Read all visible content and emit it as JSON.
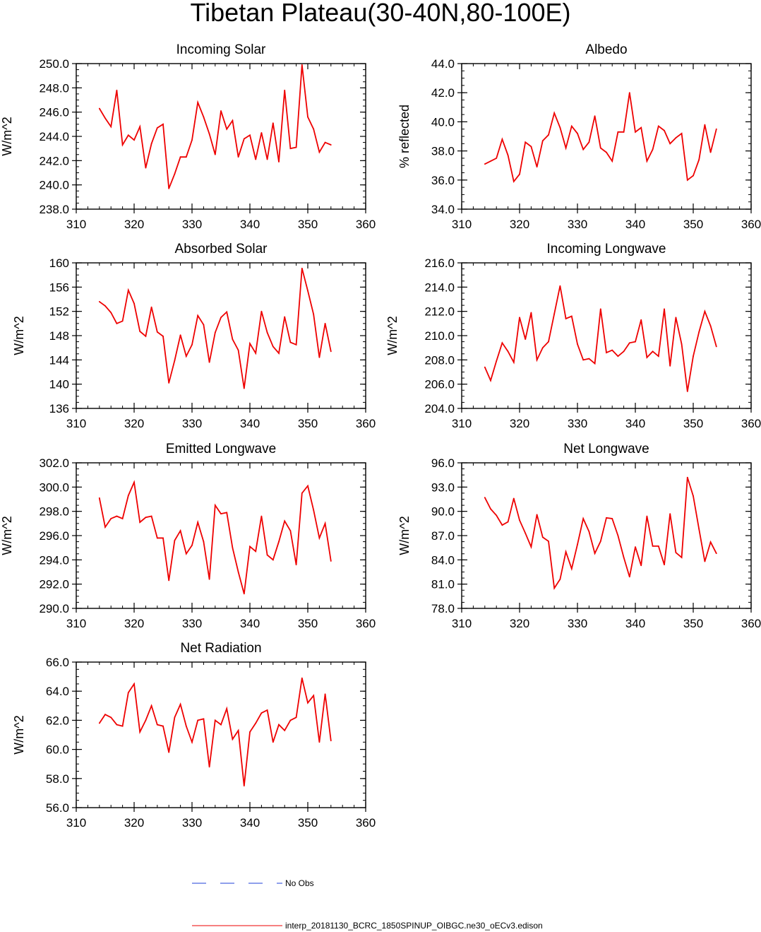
{
  "page_title": "Tibetan Plateau(30-40N,80-100E)",
  "colors": {
    "model_line": "#ee0000",
    "obs_line": "#1f3fd9",
    "axis": "#000000"
  },
  "legend": {
    "obs_label": "No Obs",
    "model_label": "interp_20181130_BCRC_1850SPINUP_OIBGC.ne30_oECv3.edison"
  },
  "chart_data": [
    {
      "type": "line",
      "title": "Incoming Solar",
      "xlabel": "",
      "ylabel": "W/m^2",
      "xlim": [
        310,
        360
      ],
      "ylim": [
        238,
        250
      ],
      "xticks": [
        310,
        320,
        330,
        340,
        350,
        360
      ],
      "xtick_labels": [
        "310",
        "320",
        "330",
        "340",
        "350",
        "360"
      ],
      "yticks": [
        238,
        240,
        242,
        244,
        246,
        248,
        250
      ],
      "ytick_labels": [
        "238.0",
        "240.0",
        "242.0",
        "244.0",
        "246.0",
        "248.0",
        "250.0"
      ],
      "x": [
        314,
        315,
        316,
        317,
        318,
        319,
        320,
        321,
        322,
        323,
        324,
        325,
        326,
        327,
        328,
        329,
        330,
        331,
        332,
        333,
        334,
        335,
        336,
        337,
        338,
        339,
        340,
        341,
        342,
        343,
        344,
        345,
        346,
        347,
        348,
        349,
        350,
        351,
        352,
        353,
        354
      ],
      "series": [
        {
          "values": [
            246.3,
            245.5,
            244.8,
            247.8,
            243.3,
            244.1,
            243.7,
            244.8,
            241.4,
            243.4,
            244.7,
            245.0,
            239.7,
            240.9,
            242.3,
            242.3,
            243.7,
            246.8,
            245.6,
            244.2,
            242.5,
            246.1,
            244.6,
            245.3,
            242.3,
            243.8,
            244.1,
            242.1,
            244.3,
            242.1,
            245.1,
            241.9,
            247.8,
            243.0,
            243.1,
            249.9,
            245.6,
            244.6,
            242.7,
            243.5,
            243.3
          ]
        }
      ]
    },
    {
      "type": "line",
      "title": "Albedo",
      "xlabel": "",
      "ylabel": "% reflected",
      "xlim": [
        310,
        360
      ],
      "ylim": [
        34,
        44
      ],
      "xticks": [
        310,
        320,
        330,
        340,
        350,
        360
      ],
      "xtick_labels": [
        "310",
        "320",
        "330",
        "340",
        "350",
        "360"
      ],
      "yticks": [
        34,
        36,
        38,
        40,
        42,
        44
      ],
      "ytick_labels": [
        "34.0",
        "36.0",
        "38.0",
        "40.0",
        "42.0",
        "44.0"
      ],
      "x": [
        314,
        315,
        316,
        317,
        318,
        319,
        320,
        321,
        322,
        323,
        324,
        325,
        326,
        327,
        328,
        329,
        330,
        331,
        332,
        333,
        334,
        335,
        336,
        337,
        338,
        339,
        340,
        341,
        342,
        343,
        344,
        345,
        346,
        347,
        348,
        349,
        350,
        351,
        352,
        353,
        354
      ],
      "series": [
        {
          "values": [
            37.1,
            37.3,
            37.5,
            38.8,
            37.7,
            35.9,
            36.4,
            38.6,
            38.3,
            36.9,
            38.7,
            39.1,
            40.6,
            39.6,
            38.2,
            39.7,
            39.2,
            38.1,
            38.6,
            40.4,
            38.2,
            37.9,
            37.3,
            39.3,
            39.3,
            42.0,
            39.3,
            39.6,
            37.3,
            38.1,
            39.7,
            39.4,
            38.5,
            38.9,
            39.2,
            36.0,
            36.3,
            37.4,
            39.8,
            37.9,
            39.5
          ]
        }
      ]
    },
    {
      "type": "line",
      "title": "Absorbed Solar",
      "xlabel": "",
      "ylabel": "W/m^2",
      "xlim": [
        310,
        360
      ],
      "ylim": [
        136,
        160
      ],
      "xticks": [
        310,
        320,
        330,
        340,
        350,
        360
      ],
      "xtick_labels": [
        "310",
        "320",
        "330",
        "340",
        "350",
        "360"
      ],
      "yticks": [
        136,
        140,
        144,
        148,
        152,
        156,
        160
      ],
      "ytick_labels": [
        "136",
        "140",
        "144",
        "148",
        "152",
        "156",
        "160"
      ],
      "x": [
        314,
        315,
        316,
        317,
        318,
        319,
        320,
        321,
        322,
        323,
        324,
        325,
        326,
        327,
        328,
        329,
        330,
        331,
        332,
        333,
        334,
        335,
        336,
        337,
        338,
        339,
        340,
        341,
        342,
        343,
        344,
        345,
        346,
        347,
        348,
        349,
        350,
        351,
        352,
        353,
        354
      ],
      "series": [
        {
          "values": [
            153.6,
            152.9,
            151.8,
            150.0,
            150.4,
            155.5,
            153.3,
            148.7,
            147.9,
            152.7,
            148.6,
            147.9,
            140.2,
            143.9,
            148.1,
            144.6,
            146.5,
            151.3,
            149.8,
            143.6,
            148.5,
            151.0,
            151.9,
            147.4,
            145.6,
            139.3,
            146.7,
            145.1,
            152.0,
            148.5,
            146.2,
            145.1,
            151.1,
            146.9,
            146.5,
            159.1,
            155.4,
            151.5,
            144.4,
            150.0,
            145.4
          ]
        }
      ]
    },
    {
      "type": "line",
      "title": "Incoming Longwave",
      "xlabel": "",
      "ylabel": "W/m^2",
      "xlim": [
        310,
        360
      ],
      "ylim": [
        204,
        216
      ],
      "xticks": [
        310,
        320,
        330,
        340,
        350,
        360
      ],
      "xtick_labels": [
        "310",
        "320",
        "330",
        "340",
        "350",
        "360"
      ],
      "yticks": [
        204,
        206,
        208,
        210,
        212,
        214,
        216
      ],
      "ytick_labels": [
        "204.0",
        "206.0",
        "208.0",
        "210.0",
        "212.0",
        "214.0",
        "216.0"
      ],
      "x": [
        314,
        315,
        316,
        317,
        318,
        319,
        320,
        321,
        322,
        323,
        324,
        325,
        326,
        327,
        328,
        329,
        330,
        331,
        332,
        333,
        334,
        335,
        336,
        337,
        338,
        339,
        340,
        341,
        342,
        343,
        344,
        345,
        346,
        347,
        348,
        349,
        350,
        351,
        352,
        353,
        354
      ],
      "series": [
        {
          "values": [
            207.4,
            206.3,
            207.9,
            209.4,
            208.7,
            207.8,
            211.5,
            209.7,
            211.9,
            208.0,
            209.0,
            209.5,
            211.8,
            214.1,
            211.4,
            211.6,
            209.3,
            208.0,
            208.1,
            207.7,
            212.2,
            208.6,
            208.8,
            208.3,
            208.7,
            209.4,
            209.5,
            211.3,
            208.2,
            208.7,
            208.3,
            212.2,
            207.5,
            211.5,
            209.3,
            205.4,
            208.3,
            210.3,
            212.0,
            210.8,
            209.1
          ]
        }
      ]
    },
    {
      "type": "line",
      "title": "Emitted Longwave",
      "xlabel": "",
      "ylabel": "W/m^2",
      "xlim": [
        310,
        360
      ],
      "ylim": [
        290,
        302
      ],
      "xticks": [
        310,
        320,
        330,
        340,
        350,
        360
      ],
      "xtick_labels": [
        "310",
        "320",
        "330",
        "340",
        "350",
        "360"
      ],
      "yticks": [
        290,
        292,
        294,
        296,
        298,
        300,
        302
      ],
      "ytick_labels": [
        "290.0",
        "292.0",
        "294.0",
        "296.0",
        "298.0",
        "300.0",
        "302.0"
      ],
      "x": [
        314,
        315,
        316,
        317,
        318,
        319,
        320,
        321,
        322,
        323,
        324,
        325,
        326,
        327,
        328,
        329,
        330,
        331,
        332,
        333,
        334,
        335,
        336,
        337,
        338,
        339,
        340,
        341,
        342,
        343,
        344,
        345,
        346,
        347,
        348,
        349,
        350,
        351,
        352,
        353,
        354
      ],
      "series": [
        {
          "values": [
            299.1,
            296.7,
            297.4,
            297.6,
            297.4,
            299.3,
            300.4,
            297.1,
            297.5,
            297.6,
            295.8,
            295.8,
            292.3,
            295.6,
            296.4,
            294.5,
            295.2,
            297.1,
            295.5,
            292.4,
            298.5,
            297.8,
            297.9,
            295.0,
            293.0,
            291.2,
            295.1,
            294.7,
            297.6,
            294.4,
            294.0,
            295.5,
            297.2,
            296.4,
            293.6,
            299.5,
            300.1,
            298.1,
            295.8,
            297.0,
            293.9
          ]
        }
      ]
    },
    {
      "type": "line",
      "title": "Net Longwave",
      "xlabel": "",
      "ylabel": "W/m^2",
      "xlim": [
        310,
        360
      ],
      "ylim": [
        78,
        96
      ],
      "xticks": [
        310,
        320,
        330,
        340,
        350,
        360
      ],
      "xtick_labels": [
        "310",
        "320",
        "330",
        "340",
        "350",
        "360"
      ],
      "yticks": [
        78,
        81,
        84,
        87,
        90,
        93,
        96
      ],
      "ytick_labels": [
        "78.0",
        "81.0",
        "84.0",
        "87.0",
        "90.0",
        "93.0",
        "96.0"
      ],
      "x": [
        314,
        315,
        316,
        317,
        318,
        319,
        320,
        321,
        322,
        323,
        324,
        325,
        326,
        327,
        328,
        329,
        330,
        331,
        332,
        333,
        334,
        335,
        336,
        337,
        338,
        339,
        340,
        341,
        342,
        343,
        344,
        345,
        346,
        347,
        348,
        349,
        350,
        351,
        352,
        353,
        354
      ],
      "series": [
        {
          "values": [
            91.7,
            90.3,
            89.5,
            88.3,
            88.7,
            91.6,
            88.9,
            87.3,
            85.6,
            89.6,
            86.8,
            86.3,
            80.5,
            81.6,
            85.0,
            82.9,
            85.9,
            89.1,
            87.5,
            84.8,
            86.3,
            89.2,
            89.1,
            87.0,
            84.3,
            81.9,
            85.6,
            83.3,
            89.4,
            85.7,
            85.7,
            83.4,
            89.7,
            84.9,
            84.3,
            94.2,
            91.9,
            87.8,
            83.8,
            86.2,
            84.8
          ]
        }
      ]
    },
    {
      "type": "line",
      "title": "Net Radiation",
      "xlabel": "",
      "ylabel": "W/m^2",
      "xlim": [
        310,
        360
      ],
      "ylim": [
        56,
        66
      ],
      "xticks": [
        310,
        320,
        330,
        340,
        350,
        360
      ],
      "xtick_labels": [
        "310",
        "320",
        "330",
        "340",
        "350",
        "360"
      ],
      "yticks": [
        56,
        58,
        60,
        62,
        64,
        66
      ],
      "ytick_labels": [
        "56.0",
        "58.0",
        "60.0",
        "62.0",
        "64.0",
        "66.0"
      ],
      "x": [
        314,
        315,
        316,
        317,
        318,
        319,
        320,
        321,
        322,
        323,
        324,
        325,
        326,
        327,
        328,
        329,
        330,
        331,
        332,
        333,
        334,
        335,
        336,
        337,
        338,
        339,
        340,
        341,
        342,
        343,
        344,
        345,
        346,
        347,
        348,
        349,
        350,
        351,
        352,
        353,
        354
      ],
      "series": [
        {
          "values": [
            61.8,
            62.4,
            62.2,
            61.7,
            61.6,
            63.9,
            64.5,
            61.2,
            62.0,
            63.0,
            61.7,
            61.6,
            59.8,
            62.2,
            63.1,
            61.6,
            60.5,
            62.0,
            62.1,
            58.8,
            62.0,
            61.7,
            62.8,
            60.7,
            61.3,
            57.5,
            61.2,
            61.8,
            62.5,
            62.7,
            60.5,
            61.7,
            61.3,
            62.0,
            62.2,
            64.9,
            63.2,
            63.7,
            60.5,
            63.8,
            60.6
          ]
        }
      ]
    }
  ]
}
